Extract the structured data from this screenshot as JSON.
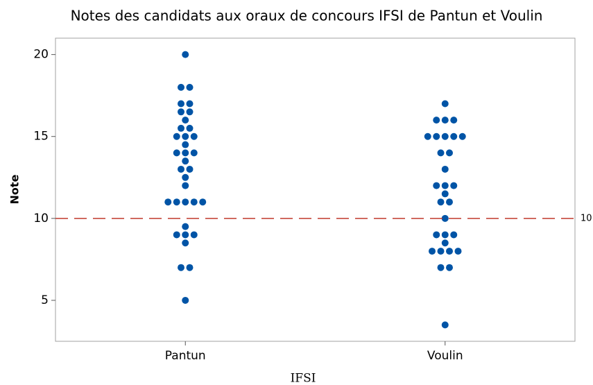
{
  "chart_data": {
    "type": "dotplot",
    "title": "Notes des candidats aux oraux de concours IFSI de Pantun et Voulin",
    "x_label": "IFSI",
    "y_label": "Note",
    "groups": [
      {
        "name": "Pantun",
        "values": [
          20,
          18,
          18,
          17,
          17,
          16.5,
          16.5,
          16,
          15.5,
          15.5,
          15,
          15,
          15,
          14.5,
          14,
          14,
          14,
          13.5,
          13,
          13,
          12.5,
          12,
          11,
          11,
          11,
          11,
          11,
          9.5,
          9,
          9,
          9,
          8.5,
          7,
          7,
          5
        ]
      },
      {
        "name": "Voulin",
        "values": [
          17,
          16,
          16,
          16,
          15,
          15,
          15,
          15,
          15,
          14,
          14,
          13,
          12,
          12,
          12,
          11.5,
          11,
          11,
          10,
          9,
          9,
          9,
          8.5,
          8,
          8,
          8,
          8,
          7,
          7,
          3.5
        ]
      }
    ],
    "color": "#0054a6",
    "ylim": [
      2.5,
      21
    ],
    "yticks": [
      5,
      10,
      15,
      20
    ],
    "reference_line": {
      "value": 10,
      "color": "#c0392b"
    }
  }
}
